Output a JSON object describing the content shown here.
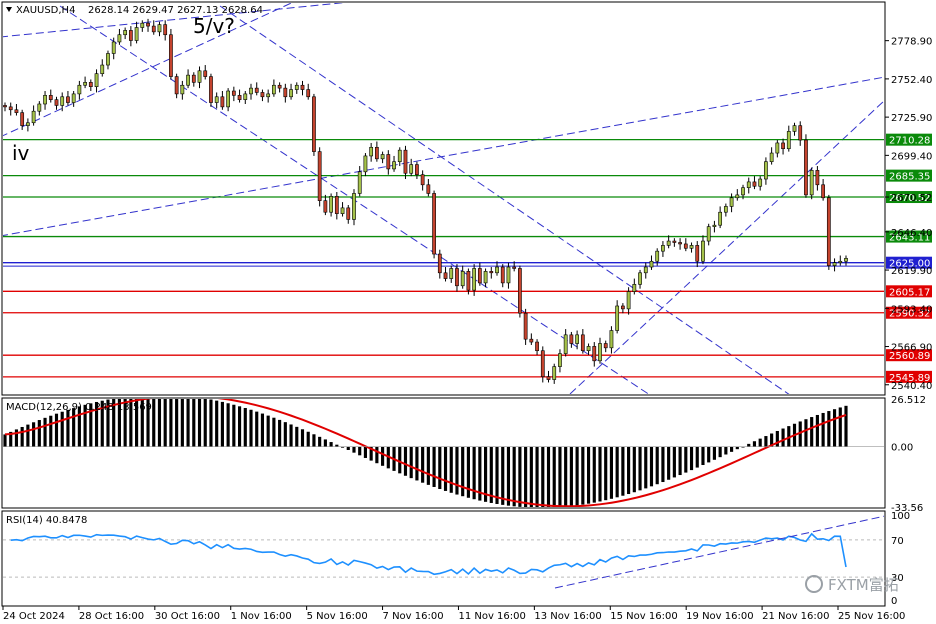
{
  "header": {
    "symbol_tf": "XAUUSD,H4",
    "ohlc": "2628.14 2629.47 2627.13 2628.64",
    "macd_label": "MACD(12,26,9) 0.248 13.569",
    "rsi_label": "RSI(14) 40.8478",
    "watermark": "FXTM富拓"
  },
  "wave_labels": [
    "5/v?",
    "iv"
  ],
  "colors": {
    "bull": "#a5c24a",
    "bear": "#c4432e",
    "support": "#e00000",
    "resistance": "#0a8a0a",
    "current": "#2020d0",
    "trend": "#3333cc",
    "macd_signal": "#e00000",
    "macd_hist": "#000000",
    "rsi_line": "#1e90ff"
  },
  "chart_data": [
    {
      "type": "candlestick",
      "y_ticks": [
        "2778.90",
        "2752.40",
        "2725.90",
        "2699.40",
        "2670.52",
        "2646.40",
        "2619.90",
        "2593.40",
        "2566.90",
        "2540.40"
      ],
      "ylim": [
        2534,
        2805
      ],
      "x_labels": [
        "24 Oct 2024",
        "28 Oct 16:00",
        "30 Oct 16:00",
        "1 Nov 16:00",
        "5 Nov 16:00",
        "7 Nov 16:00",
        "11 Nov 16:00",
        "13 Nov 16:00",
        "15 Nov 16:00",
        "19 Nov 16:00",
        "21 Nov 16:00",
        "25 Nov 16:00"
      ],
      "levels": [
        {
          "value": 2710.28,
          "label": "2710.28",
          "kind": "resistance"
        },
        {
          "value": 2685.35,
          "label": "2685.35",
          "kind": "resistance"
        },
        {
          "value": 2670.52,
          "label": "2670.52",
          "kind": "resistance"
        },
        {
          "value": 2643.11,
          "label": "2643.11",
          "kind": "resistance"
        },
        {
          "value": 2625.0,
          "label": "2625.00",
          "kind": "current"
        },
        {
          "value": 2605.17,
          "label": "2605.17",
          "kind": "support"
        },
        {
          "value": 2590.32,
          "label": "2590.32",
          "kind": "support"
        },
        {
          "value": 2560.89,
          "label": "2560.89",
          "kind": "support"
        },
        {
          "value": 2545.89,
          "label": "2545.89",
          "kind": "support"
        }
      ],
      "closes": [
        2733,
        2731,
        2729,
        2720,
        2722,
        2730,
        2735,
        2741,
        2738,
        2734,
        2740,
        2736,
        2742,
        2748,
        2750,
        2747,
        2756,
        2762,
        2770,
        2778,
        2783,
        2786,
        2779,
        2788,
        2791,
        2789,
        2785,
        2790,
        2783,
        2754,
        2742,
        2748,
        2755,
        2750,
        2758,
        2754,
        2736,
        2740,
        2733,
        2744,
        2741,
        2738,
        2742,
        2746,
        2743,
        2740,
        2742,
        2748,
        2746,
        2740,
        2745,
        2748,
        2745,
        2740,
        2702,
        2668,
        2660,
        2671,
        2659,
        2663,
        2655,
        2673,
        2688,
        2699,
        2705,
        2697,
        2700,
        2690,
        2695,
        2703,
        2687,
        2693,
        2686,
        2679,
        2673,
        2631,
        2618,
        2614,
        2621,
        2609,
        2619,
        2606,
        2621,
        2611,
        2619,
        2618,
        2622,
        2611,
        2622,
        2621,
        2590,
        2572,
        2570,
        2564,
        2546,
        2544,
        2553,
        2562,
        2575,
        2569,
        2575,
        2564,
        2567,
        2557,
        2569,
        2566,
        2578,
        2595,
        2593,
        2605,
        2610,
        2618,
        2622,
        2626,
        2633,
        2637,
        2640,
        2639,
        2638,
        2635,
        2637,
        2626,
        2640,
        2650,
        2651,
        2660,
        2664,
        2670,
        2672,
        2677,
        2681,
        2678,
        2683,
        2695,
        2701,
        2708,
        2704,
        2716,
        2720,
        2710,
        2672,
        2689,
        2679,
        2670,
        2623,
        2625,
        2626,
        2628
      ],
      "macd": {
        "ylim": [
          -33.56,
          26.512
        ],
        "y_ticks": [
          "26.512",
          "0.00",
          "-33.56"
        ],
        "histogram_range": [
          -34,
          29
        ],
        "signal_range": [
          -30,
          24
        ]
      },
      "rsi": {
        "ylim": [
          0,
          100
        ],
        "y_ticks": [
          "100",
          "70",
          "30",
          "0"
        ],
        "line_range": [
          33,
          77
        ],
        "last": 40.8478
      }
    }
  ]
}
